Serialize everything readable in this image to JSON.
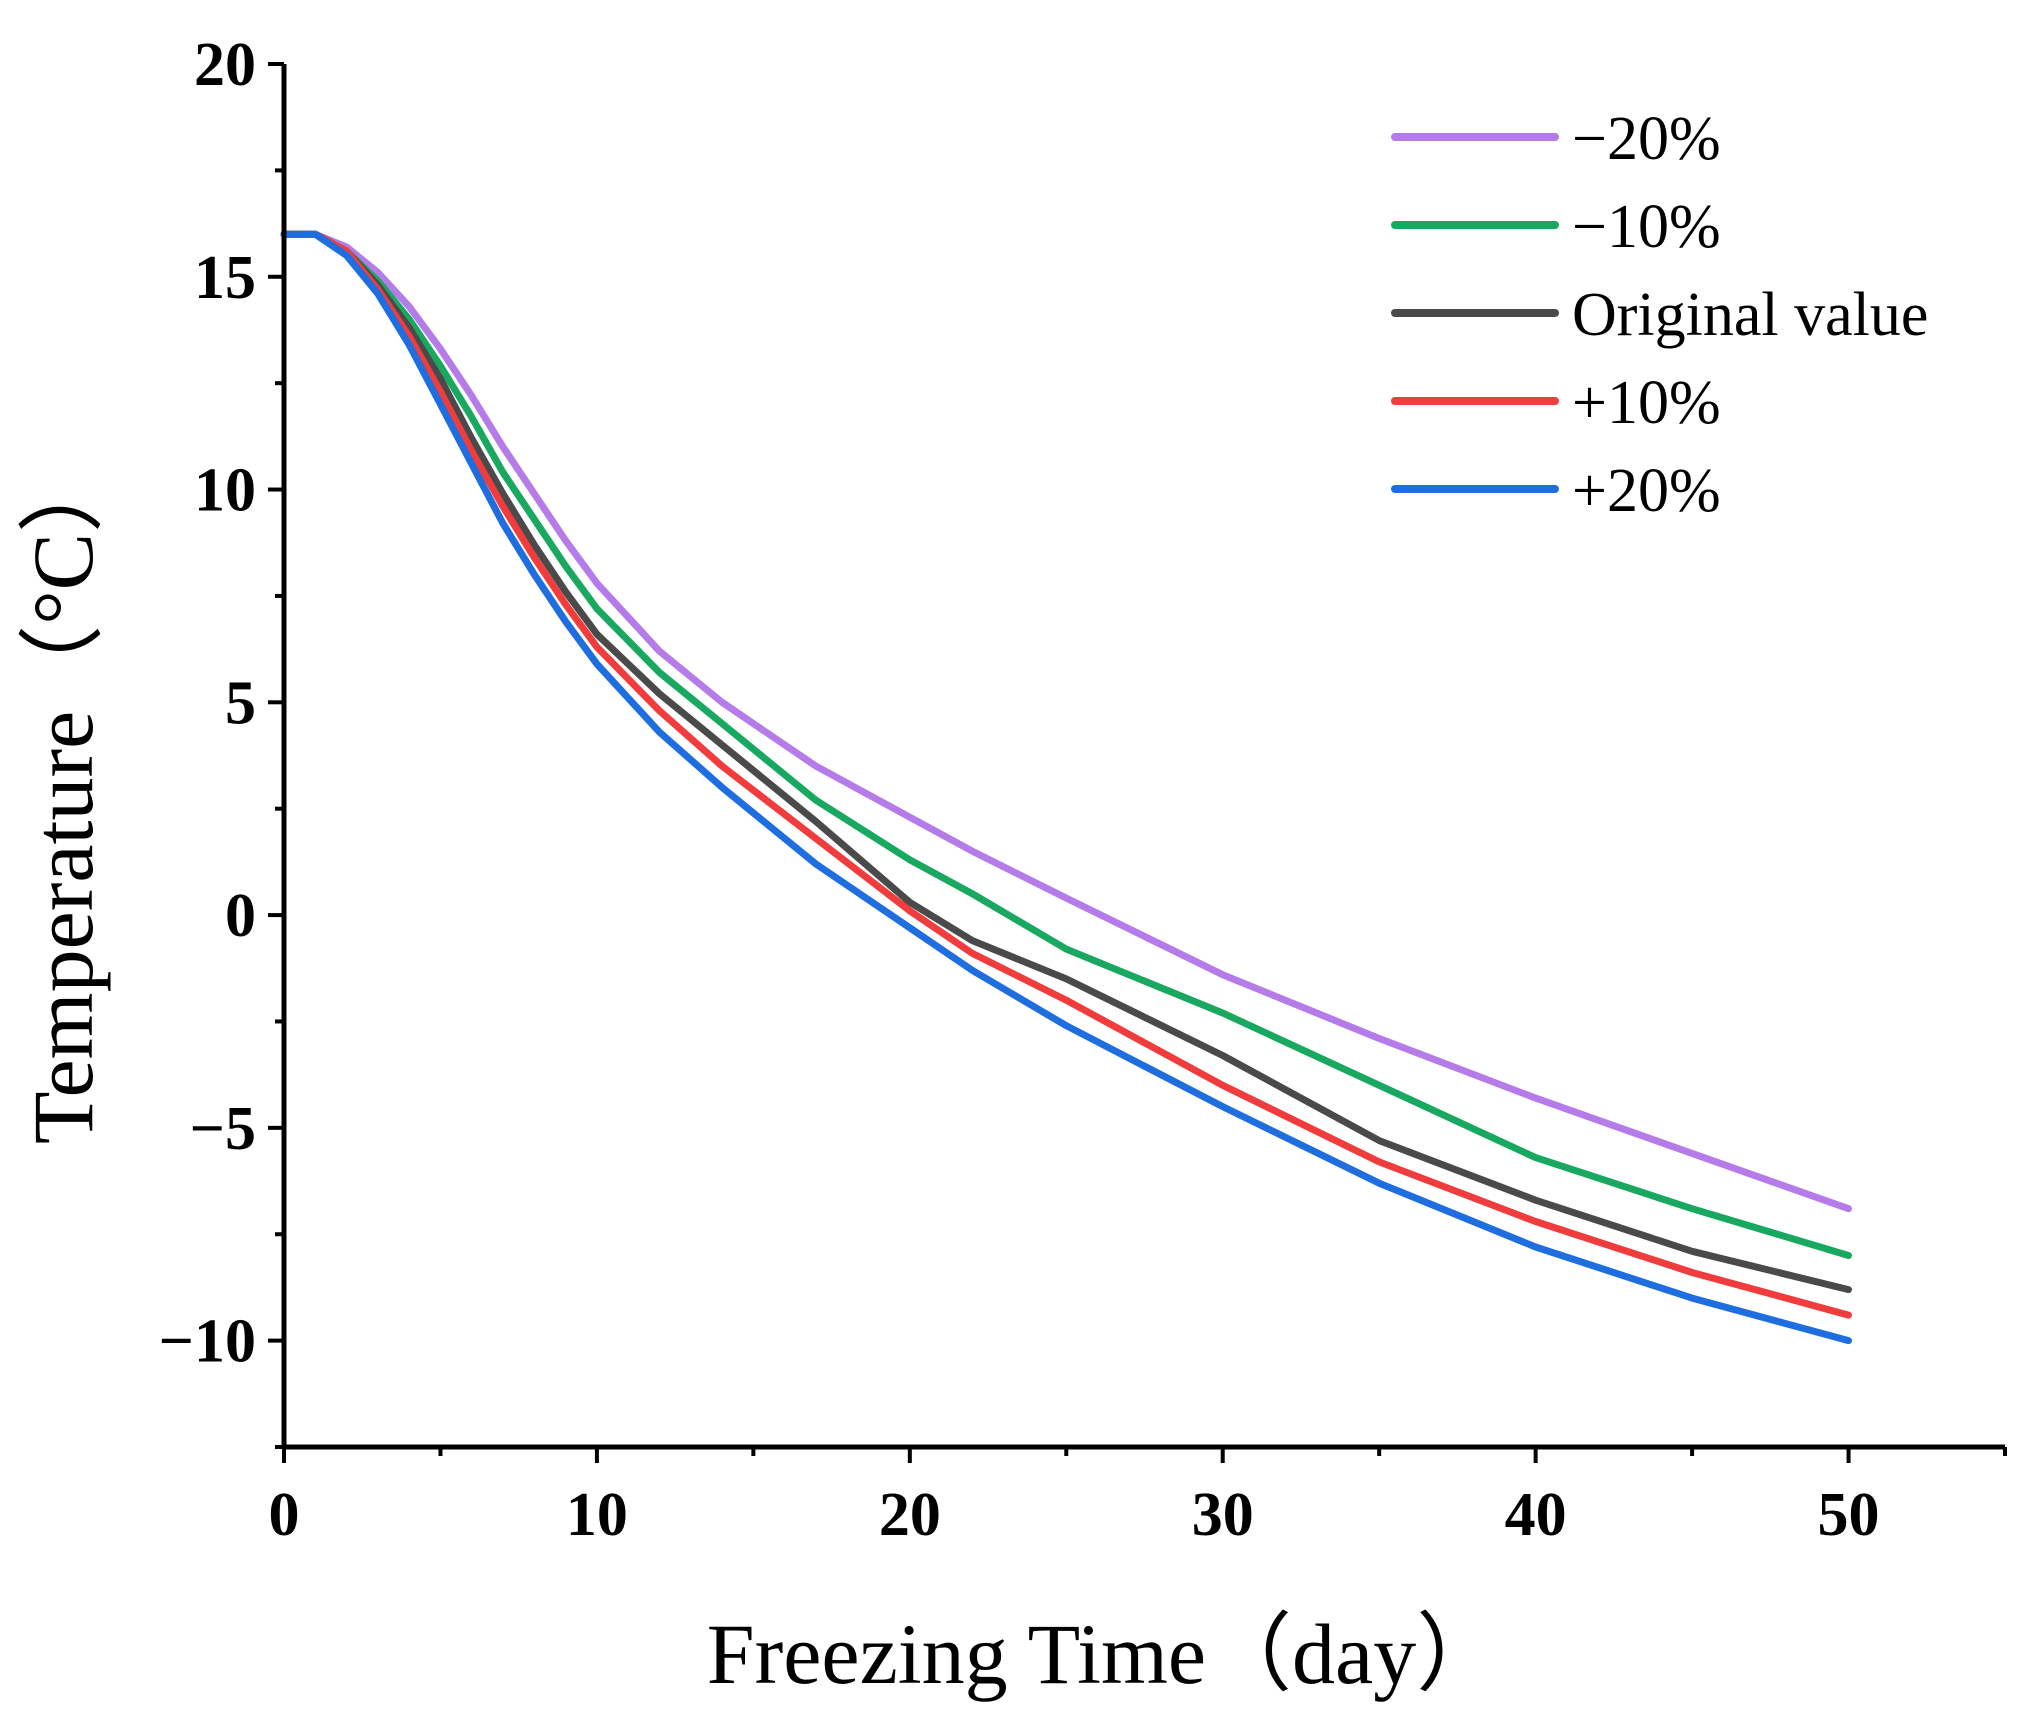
{
  "chart_data": {
    "type": "line",
    "title": "",
    "xlabel": "Freezing Time（day）",
    "ylabel": "Temperature（°C）",
    "xlim": [
      0,
      55
    ],
    "ylim": [
      -12.5,
      20
    ],
    "xticks": [
      0,
      10,
      20,
      30,
      40,
      50
    ],
    "xtick_labels": [
      "0",
      "10",
      "20",
      "30",
      "40",
      "50"
    ],
    "yticks": [
      -10,
      -5,
      0,
      5,
      10,
      15,
      20
    ],
    "ytick_labels": [
      "−10",
      "−5",
      "0",
      "5",
      "10",
      "15",
      "20"
    ],
    "grid": false,
    "legend_position": "top-right",
    "x": [
      0,
      1,
      2,
      3,
      4,
      5,
      6,
      7,
      8,
      9,
      10,
      12,
      14,
      17,
      20,
      22,
      25,
      30,
      35,
      40,
      45,
      50
    ],
    "series": [
      {
        "name": "−20%",
        "color": "#b57be8",
        "values": [
          16.0,
          16.0,
          15.7,
          15.1,
          14.3,
          13.3,
          12.2,
          11.0,
          9.9,
          8.8,
          7.8,
          6.2,
          5.0,
          3.5,
          2.3,
          1.5,
          0.4,
          -1.4,
          -2.9,
          -4.3,
          -5.6,
          -6.9
        ]
      },
      {
        "name": "−10%",
        "color": "#19a860",
        "values": [
          16.0,
          16.0,
          15.6,
          14.9,
          14.0,
          12.9,
          11.7,
          10.4,
          9.3,
          8.2,
          7.2,
          5.7,
          4.5,
          2.7,
          1.3,
          0.5,
          -0.8,
          -2.3,
          -4.0,
          -5.7,
          -6.9,
          -8.0
        ]
      },
      {
        "name": "Original value",
        "color": "#4a4a4a",
        "values": [
          16.0,
          16.0,
          15.6,
          14.8,
          13.8,
          12.6,
          11.2,
          9.9,
          8.7,
          7.6,
          6.6,
          5.2,
          4.0,
          2.2,
          0.3,
          -0.6,
          -1.5,
          -3.3,
          -5.3,
          -6.7,
          -7.9,
          -8.8
        ]
      },
      {
        "name": "+10%",
        "color": "#f03c3c",
        "values": [
          16.0,
          16.0,
          15.6,
          14.7,
          13.6,
          12.3,
          10.9,
          9.6,
          8.4,
          7.3,
          6.3,
          4.8,
          3.5,
          1.8,
          0.1,
          -0.9,
          -2.0,
          -4.0,
          -5.8,
          -7.2,
          -8.4,
          -9.4
        ]
      },
      {
        "name": "+20%",
        "color": "#1f6ee0",
        "values": [
          16.0,
          16.0,
          15.5,
          14.6,
          13.4,
          12.0,
          10.6,
          9.2,
          8.0,
          6.9,
          5.9,
          4.3,
          3.0,
          1.2,
          -0.3,
          -1.3,
          -2.6,
          -4.5,
          -6.3,
          -7.8,
          -9.0,
          -10.0
        ]
      }
    ]
  }
}
